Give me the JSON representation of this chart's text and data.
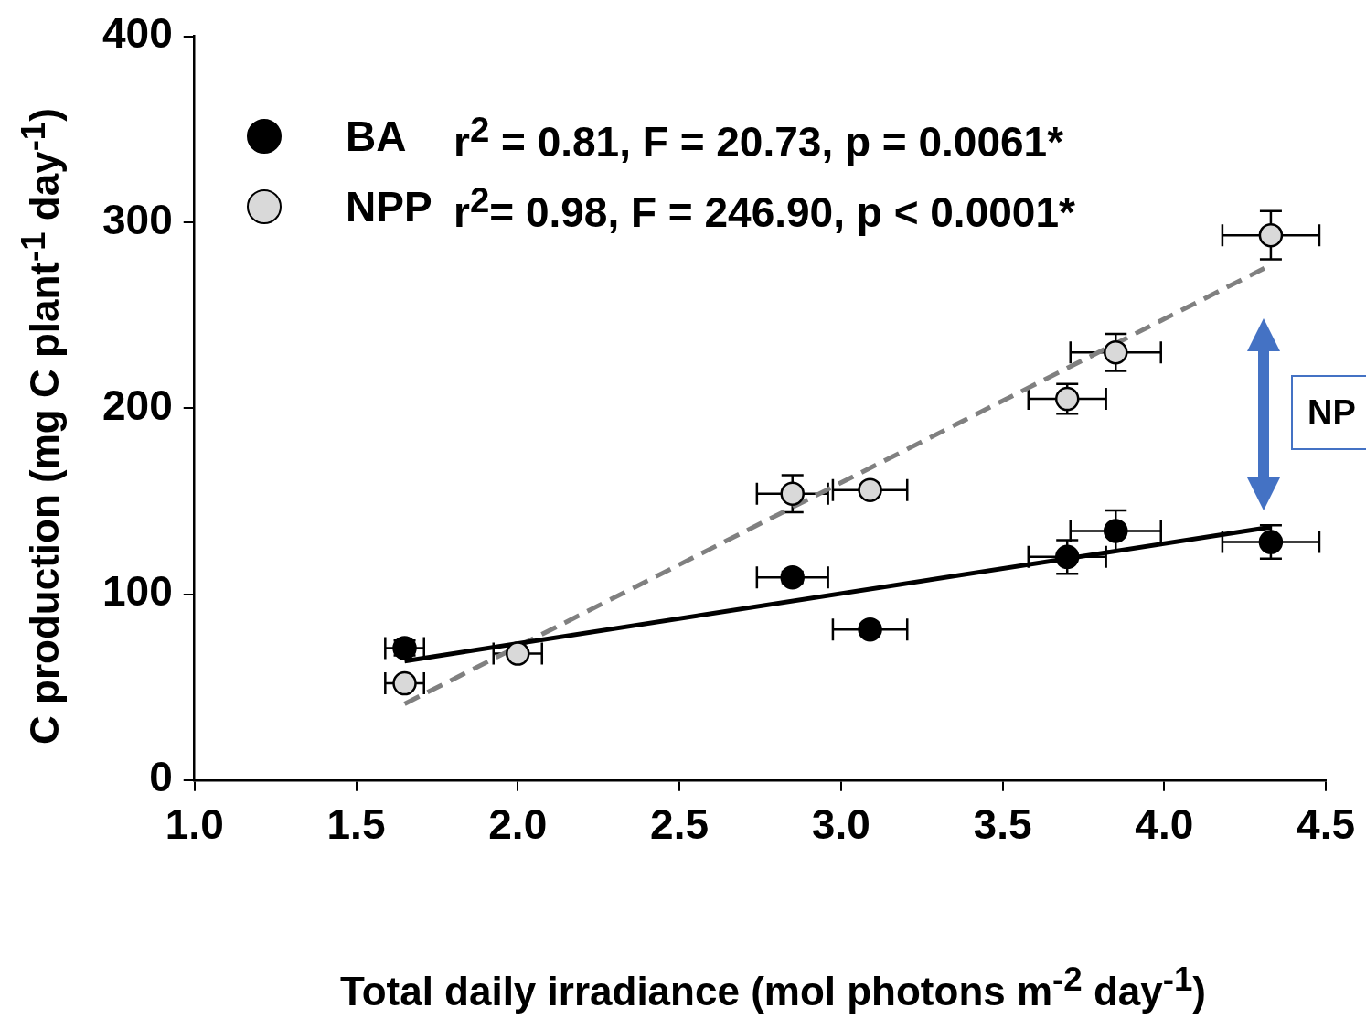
{
  "chart_data": {
    "type": "scatter",
    "xlabel": "Total daily irradiance (mol photons m$^{-2}$ day$^{-1}$)",
    "ylabel": "C production (mg C plant$^{-1}$ day$^{-1}$)",
    "xlim": [
      1.0,
      4.5
    ],
    "xticks": [
      {
        "value": 1,
        "label": "1.0"
      },
      {
        "value": 1.5,
        "label": "1.5"
      },
      {
        "value": 2,
        "label": "2.0"
      },
      {
        "value": 2.5,
        "label": "2.5"
      },
      {
        "value": 3,
        "label": "3.0"
      },
      {
        "value": 3.5,
        "label": "3.5"
      },
      {
        "value": 4,
        "label": "4.0"
      },
      {
        "value": 4.5,
        "label": "4.5"
      }
    ],
    "ylim": [
      0,
      400
    ],
    "yticks": [
      0,
      100,
      200,
      300,
      400
    ],
    "grid": false,
    "legend": "top left",
    "marker": "circle",
    "series": [
      {
        "name": "BA",
        "color": "#000000",
        "x": [
          1.65,
          2.85,
          3.09,
          3.7,
          3.85,
          4.33
        ],
        "values": [
          71,
          109,
          81,
          120,
          134,
          128
        ],
        "errors": [
          4,
          3,
          null,
          9,
          11,
          9
        ],
        "xerrors": [
          0.06,
          0.11,
          0.115,
          0.12,
          0.14,
          0.15
        ]
      },
      {
        "name": "NPP",
        "color": "#d9d9d9",
        "x": [
          1.65,
          2.0,
          2.85,
          3.09,
          3.7,
          3.85,
          4.33
        ],
        "values": [
          52,
          68,
          154,
          156,
          205,
          230,
          293
        ],
        "errors": [
          null,
          null,
          10,
          null,
          8,
          10,
          13
        ],
        "xerrors": [
          0.06,
          0.075,
          0.11,
          0.115,
          0.12,
          0.14,
          0.15
        ]
      },
      {
        "type": "line",
        "color": "#000000",
        "marker": "none",
        "line_style": "solid",
        "x": [
          1.65,
          4.33
        ],
        "values": [
          64,
          136
        ]
      },
      {
        "type": "line",
        "color": "#808080",
        "marker": "none",
        "line_style": "dashed",
        "x": [
          1.65,
          4.33
        ],
        "values": [
          41,
          277
        ]
      }
    ],
    "annotations": [
      "r$^{2}$ = 0.81, F = 20.73, p = 0.0061*",
      "r$^{2}$= 0.98, F = 246.90, p < 0.0001*",
      "NP"
    ]
  }
}
